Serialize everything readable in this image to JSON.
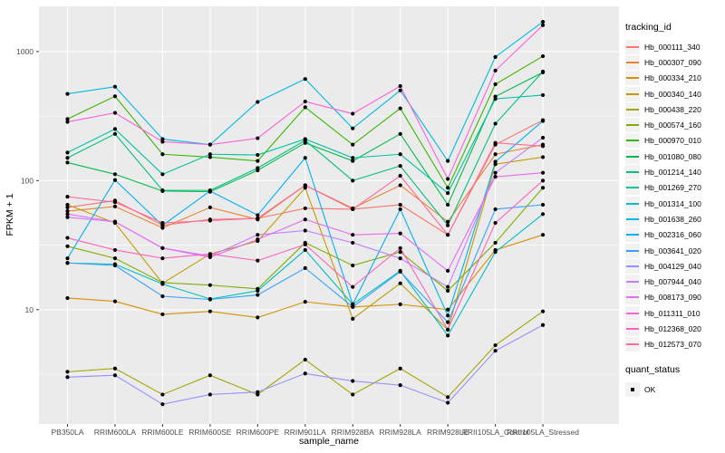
{
  "figure": {
    "background": "#ffffff",
    "panel_background": "#EBEBEB",
    "grid_color": "#FFFFFF",
    "axis_text_color": "#4D4D4D",
    "point_color": "#000000"
  },
  "legend": {
    "title": "tracking_id",
    "key_background": "#F2F2F2",
    "quant_legend": {
      "title": "quant_status",
      "items": [
        "OK"
      ]
    }
  },
  "chart_data": {
    "type": "line",
    "title": "",
    "xlabel": "sample_name",
    "ylabel": "FPKM + 1",
    "y_scale": "log10",
    "ylim": [
      1.3,
      2240
    ],
    "y_major_ticks": [
      10,
      100,
      1000
    ],
    "y_tick_labels": [
      "10",
      "100",
      "1000"
    ],
    "y_minor_ticks": [
      3.1623,
      31.623,
      316.23
    ],
    "grid": true,
    "legend_position": "right",
    "point_shape": "small black dot",
    "quant_status": "OK",
    "categories": [
      "PB350LA",
      "RRIM600LA",
      "RRIM600LE",
      "RRIM600SE",
      "RRIM600PE",
      "RRIM901LA",
      "RRIM928BA",
      "RRIM928LA",
      "RRIM928LE",
      "RRII105LA_Control",
      "RRII105LA_Stressed"
    ],
    "series": [
      {
        "name": "Hb_000111_340",
        "color": "#F8766D",
        "values": [
          62,
          70,
          45,
          50,
          51,
          61,
          60,
          65,
          38,
          190,
          294
        ]
      },
      {
        "name": "Hb_000307_090",
        "color": "#EA8331",
        "values": [
          58,
          63,
          43,
          62,
          50,
          92,
          61,
          92,
          48,
          160,
          190
        ]
      },
      {
        "name": "Hb_000334_210",
        "color": "#D89000",
        "values": [
          12.3,
          11.6,
          9.2,
          9.7,
          8.7,
          11.5,
          10.5,
          11,
          10,
          29,
          38
        ]
      },
      {
        "name": "Hb_000340_140",
        "color": "#C09B00",
        "values": [
          65,
          47,
          16,
          27,
          34,
          88,
          8.5,
          16,
          7,
          134,
          152
        ]
      },
      {
        "name": "Hb_000438_220",
        "color": "#A3A500",
        "values": [
          3.3,
          3.5,
          2.2,
          3.1,
          2.2,
          4.1,
          2.2,
          3.5,
          2.1,
          5.3,
          9.7
        ]
      },
      {
        "name": "Hb_000574_160",
        "color": "#7CAE00",
        "values": [
          31,
          25,
          16.2,
          15.5,
          14.5,
          33,
          22,
          28,
          14,
          33,
          88
        ]
      },
      {
        "name": "Hb_000970_010",
        "color": "#39B600",
        "values": [
          300,
          450,
          160,
          152,
          142,
          370,
          190,
          363,
          88,
          558,
          920
        ]
      },
      {
        "name": "Hb_001080_080",
        "color": "#00BB4E",
        "values": [
          138,
          112,
          83,
          82,
          120,
          196,
          142,
          230,
          65,
          448,
          690
        ]
      },
      {
        "name": "Hb_001214_140",
        "color": "#00BF7D",
        "values": [
          150,
          230,
          84,
          84,
          125,
          205,
          100,
          130,
          45,
          276,
          700
        ]
      },
      {
        "name": "Hb_001269_270",
        "color": "#00C1A3",
        "values": [
          165,
          251,
          112,
          160,
          158,
          210,
          150,
          160,
          80,
          430,
          460
        ]
      },
      {
        "name": "Hb_001314_100",
        "color": "#00BFC4",
        "values": [
          23,
          22.5,
          15.8,
          12.1,
          14,
          29,
          11,
          20,
          6.3,
          28,
          55
        ]
      },
      {
        "name": "Hb_001638_260",
        "color": "#00BAE0",
        "values": [
          470,
          534,
          210,
          190,
          407,
          613,
          254,
          500,
          142,
          908,
          1700
        ]
      },
      {
        "name": "Hb_002316_060",
        "color": "#00B0F6",
        "values": [
          25,
          101,
          45,
          83,
          54,
          150,
          11,
          60,
          9,
          140,
          290
        ]
      },
      {
        "name": "Hb_003641_020",
        "color": "#35A2FF",
        "values": [
          23,
          22,
          12.7,
          12,
          13,
          21,
          10.5,
          19.7,
          8,
          60,
          65
        ]
      },
      {
        "name": "Hb_004129_040",
        "color": "#9590FF",
        "values": [
          3.0,
          3.1,
          1.85,
          2.2,
          2.3,
          3.2,
          2.8,
          2.6,
          1.9,
          4.8,
          7.6
        ]
      },
      {
        "name": "Hb_007944_040",
        "color": "#C77CFF",
        "values": [
          52,
          48,
          30,
          26,
          38,
          41,
          33,
          25,
          15,
          115,
          215
        ]
      },
      {
        "name": "Hb_008173_090",
        "color": "#E76BF3",
        "values": [
          55,
          48,
          30,
          25.5,
          35,
          50,
          38,
          39,
          20,
          107,
          115
        ]
      },
      {
        "name": "Hb_011311_010",
        "color": "#FA62DB",
        "values": [
          285,
          335,
          200,
          190,
          213,
          410,
          330,
          540,
          103,
          712,
          1600
        ]
      },
      {
        "name": "Hb_012368_020",
        "color": "#FF62BC",
        "values": [
          36,
          29,
          25,
          27,
          24,
          32,
          15,
          30,
          7,
          47,
          100
        ]
      },
      {
        "name": "Hb_012573_070",
        "color": "#FF6A98",
        "values": [
          75,
          68,
          47,
          49,
          51,
          92,
          60,
          109,
          38,
          196,
          185
        ]
      }
    ]
  }
}
